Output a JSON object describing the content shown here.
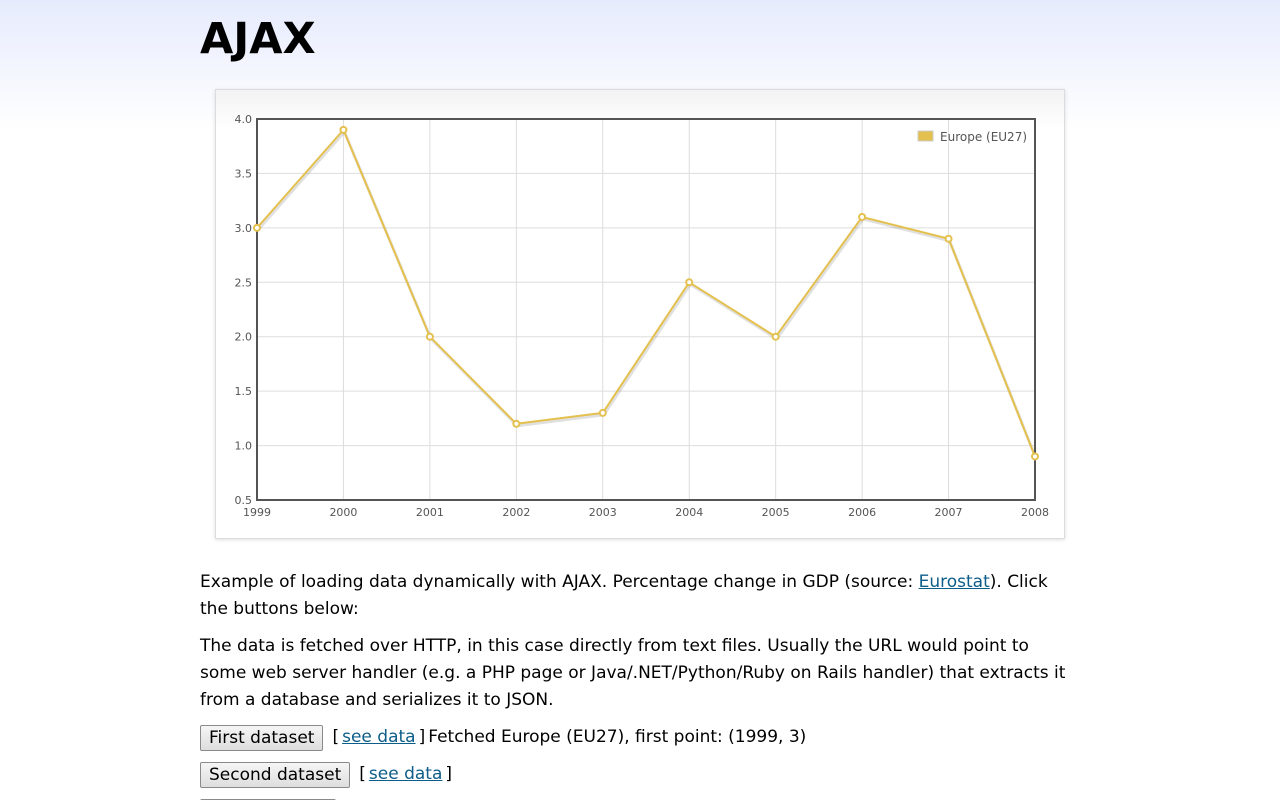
{
  "page": {
    "title": "AJAX"
  },
  "chart_data": {
    "type": "line",
    "categories": [
      "1999",
      "2000",
      "2001",
      "2002",
      "2003",
      "2004",
      "2005",
      "2006",
      "2007",
      "2008"
    ],
    "series": [
      {
        "name": "Europe (EU27)",
        "values": [
          3.0,
          3.9,
          2.0,
          1.2,
          1.3,
          2.5,
          2.0,
          3.1,
          2.9,
          0.9
        ],
        "color": "#e4c04e"
      }
    ],
    "y_ticks": [
      "0.5",
      "1.0",
      "1.5",
      "2.0",
      "2.5",
      "3.0",
      "3.5",
      "4.0"
    ],
    "ylim": [
      0.5,
      4.0
    ],
    "grid": true,
    "legend_position": "top-right"
  },
  "description": {
    "paragraph1_prefix": "Example of loading data dynamically with AJAX. Percentage change in GDP (source: ",
    "paragraph1_link": "Eurostat",
    "paragraph1_suffix": "). Click the buttons below:",
    "paragraph2": "The data is fetched over HTTP, in this case directly from text files. Usually the URL would point to some web server handler (e.g. a PHP page or Java/.NET/Python/Ruby on Rails handler) that extracts it from a database and serializes it to JSON."
  },
  "datasets": [
    {
      "button_label": "First dataset",
      "bracket_open": "[",
      "link_label": "see data",
      "bracket_close": "]",
      "status": "Fetched Europe (EU27), first point: (1999, 3)"
    },
    {
      "button_label": "Second dataset",
      "bracket_open": "[",
      "link_label": "see data",
      "bracket_close": "]",
      "status": ""
    }
  ]
}
